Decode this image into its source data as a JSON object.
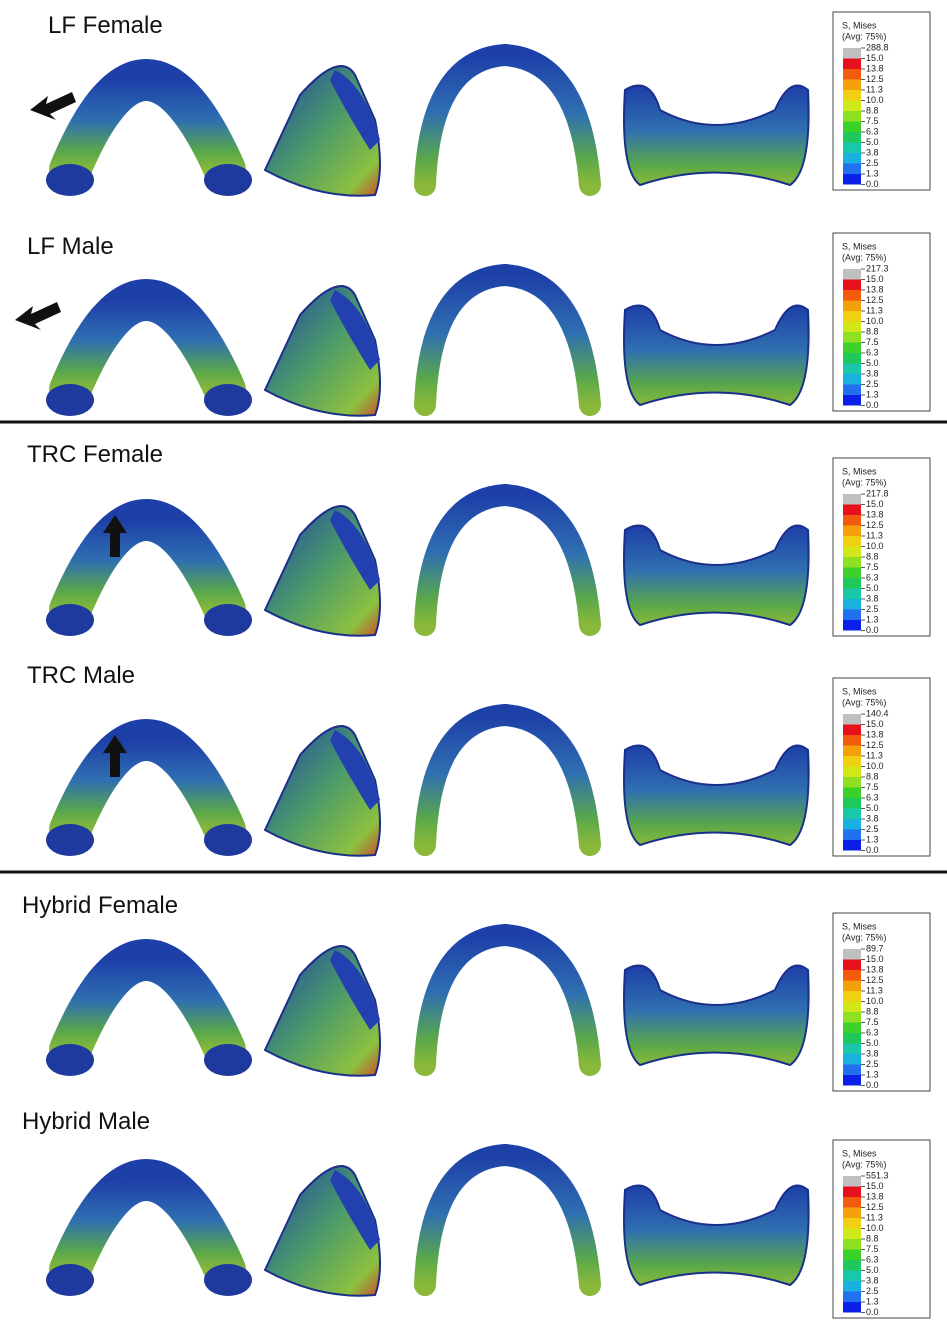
{
  "rows": [
    {
      "title": "LF Female",
      "legend": {
        "title": "S, Mises",
        "subtitle": "(Avg: 75%)",
        "labels": [
          "288.8",
          "15.0",
          "13.8",
          "12.5",
          "11.3",
          "10.0",
          "8.8",
          "7.5",
          "6.3",
          "5.0",
          "3.8",
          "2.5",
          "1.3",
          "0.0"
        ]
      }
    },
    {
      "title": "LF Male",
      "legend": {
        "title": "S, Mises",
        "subtitle": "(Avg: 75%)",
        "labels": [
          "217.3",
          "15.0",
          "13.8",
          "12.5",
          "11.3",
          "10.0",
          "8.8",
          "7.5",
          "6.3",
          "5.0",
          "3.8",
          "2.5",
          "1.3",
          "0.0"
        ]
      }
    },
    {
      "title": "TRC Female",
      "legend": {
        "title": "S, Mises",
        "subtitle": "(Avg: 75%)",
        "labels": [
          "217.8",
          "15.0",
          "13.8",
          "12.5",
          "11.3",
          "10.0",
          "8.8",
          "7.5",
          "6.3",
          "5.0",
          "3.8",
          "2.5",
          "1.3",
          "0.0"
        ]
      }
    },
    {
      "title": "TRC Male",
      "legend": {
        "title": "S, Mises",
        "subtitle": "(Avg: 75%)",
        "labels": [
          "140.4",
          "15.0",
          "13.8",
          "12.5",
          "11.3",
          "10.0",
          "8.8",
          "7.5",
          "6.3",
          "5.0",
          "3.8",
          "2.5",
          "1.3",
          "0.0"
        ]
      }
    },
    {
      "title": "Hybrid Female",
      "legend": {
        "title": "S, Mises",
        "subtitle": "(Avg: 75%)",
        "labels": [
          "89.7",
          "15.0",
          "13.8",
          "12.5",
          "11.3",
          "10.0",
          "8.8",
          "7.5",
          "6.3",
          "5.0",
          "3.8",
          "2.5",
          "1.3",
          "0.0"
        ]
      }
    },
    {
      "title": "Hybrid Male",
      "legend": {
        "title": "S, Mises",
        "subtitle": "(Avg: 75%)",
        "labels": [
          "551.3",
          "15.0",
          "13.8",
          "12.5",
          "11.3",
          "10.0",
          "8.8",
          "7.5",
          "6.3",
          "5.0",
          "3.8",
          "2.5",
          "1.3",
          "0.0"
        ]
      }
    }
  ],
  "legend_colors": [
    "#c0c0c0",
    "#e8101a",
    "#f25a0c",
    "#f5a00a",
    "#f0d010",
    "#d0e81a",
    "#8fe020",
    "#3cd02a",
    "#1ec85a",
    "#18c8a8",
    "#1ab0e0",
    "#2070f0",
    "#0a20e8"
  ]
}
